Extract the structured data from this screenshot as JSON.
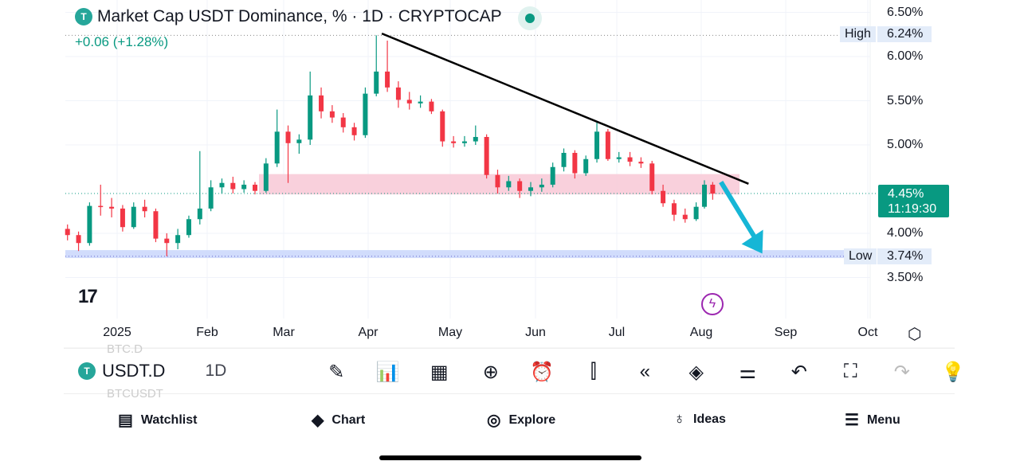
{
  "header": {
    "title": "Market Cap USDT Dominance, % · 1D · CRYPTOCAP",
    "logo": "T",
    "change": "+0.06 (+1.28%)",
    "live_icon": "green-dot"
  },
  "price_axis": {
    "ticks": [
      "6.50%",
      "6.00%",
      "5.50%",
      "5.00%",
      "4.00%",
      "3.50%"
    ],
    "high_label": "High",
    "high_value": "6.24%",
    "low_label": "Low",
    "low_value": "3.74%",
    "current_price": "4.45%",
    "countdown": "11:19:30"
  },
  "time_axis": {
    "labels": [
      "2025",
      "Feb",
      "Mar",
      "Apr",
      "May",
      "Jun",
      "Jul",
      "Aug",
      "Sep",
      "Oct"
    ]
  },
  "branding": {
    "logo_text": "TV"
  },
  "colors": {
    "up": "#089981",
    "down": "#f23645",
    "zone_resistance": "#f8c8d6",
    "zone_support": "#c9d6fb",
    "trendline": "#000000",
    "arrow": "#16b6d6"
  },
  "chart_data": {
    "type": "candlestick",
    "title": "Market Cap USDT Dominance, % · 1D · CRYPTOCAP",
    "ylim": [
      3.1,
      6.6
    ],
    "yticks": [
      3.5,
      4.0,
      5.0,
      5.5,
      6.0,
      6.5
    ],
    "xlim": [
      "2024-12-13",
      "2025-10-05"
    ],
    "grid": true,
    "high": 6.24,
    "low": 3.74,
    "last": 4.45,
    "candles": [
      [
        "2024-12-14",
        4.05,
        4.1,
        3.92,
        3.98
      ],
      [
        "2024-12-18",
        3.98,
        4.02,
        3.8,
        3.89
      ],
      [
        "2024-12-22",
        3.89,
        4.35,
        3.86,
        4.31
      ],
      [
        "2024-12-26",
        4.31,
        4.55,
        4.2,
        4.3
      ],
      [
        "2024-12-30",
        4.3,
        4.4,
        4.18,
        4.28
      ],
      [
        "2025-01-03",
        4.28,
        4.32,
        4.02,
        4.07
      ],
      [
        "2025-01-07",
        4.07,
        4.35,
        4.05,
        4.3
      ],
      [
        "2025-01-11",
        4.3,
        4.38,
        4.18,
        4.25
      ],
      [
        "2025-01-15",
        4.25,
        4.28,
        3.9,
        3.94
      ],
      [
        "2025-01-19",
        3.94,
        4.0,
        3.74,
        3.89
      ],
      [
        "2025-01-23",
        3.89,
        4.05,
        3.82,
        3.98
      ],
      [
        "2025-01-27",
        3.98,
        4.2,
        3.95,
        4.16
      ],
      [
        "2025-01-31",
        4.16,
        4.93,
        4.1,
        4.28
      ],
      [
        "2025-02-04",
        4.28,
        4.6,
        4.25,
        4.52
      ],
      [
        "2025-02-08",
        4.52,
        4.62,
        4.45,
        4.57
      ],
      [
        "2025-02-12",
        4.57,
        4.64,
        4.45,
        4.5
      ],
      [
        "2025-02-16",
        4.5,
        4.6,
        4.46,
        4.55
      ],
      [
        "2025-02-20",
        4.55,
        4.58,
        4.44,
        4.48
      ],
      [
        "2025-02-24",
        4.48,
        4.85,
        4.46,
        4.79
      ],
      [
        "2025-02-28",
        4.79,
        5.4,
        4.75,
        5.15
      ],
      [
        "2025-03-04",
        5.15,
        5.22,
        4.57,
        5.02
      ],
      [
        "2025-03-08",
        5.02,
        5.12,
        4.9,
        5.06
      ],
      [
        "2025-03-12",
        5.06,
        5.83,
        5.0,
        5.56
      ],
      [
        "2025-03-16",
        5.56,
        5.65,
        5.3,
        5.38
      ],
      [
        "2025-03-20",
        5.38,
        5.45,
        5.25,
        5.31
      ],
      [
        "2025-03-24",
        5.31,
        5.36,
        5.14,
        5.2
      ],
      [
        "2025-03-28",
        5.2,
        5.25,
        5.05,
        5.11
      ],
      [
        "2025-04-01",
        5.11,
        5.65,
        5.08,
        5.58
      ],
      [
        "2025-04-05",
        5.58,
        6.24,
        5.55,
        5.83
      ],
      [
        "2025-04-09",
        5.83,
        6.18,
        5.6,
        5.65
      ],
      [
        "2025-04-13",
        5.65,
        5.72,
        5.42,
        5.51
      ],
      [
        "2025-04-17",
        5.51,
        5.6,
        5.4,
        5.47
      ],
      [
        "2025-04-21",
        5.47,
        5.56,
        5.42,
        5.49
      ],
      [
        "2025-04-25",
        5.49,
        5.52,
        5.35,
        5.38
      ],
      [
        "2025-04-29",
        5.38,
        5.4,
        4.98,
        5.04
      ],
      [
        "2025-05-03",
        5.04,
        5.1,
        4.97,
        5.02
      ],
      [
        "2025-05-07",
        5.02,
        5.1,
        4.98,
        5.04
      ],
      [
        "2025-05-11",
        5.04,
        5.22,
        5.0,
        5.09
      ],
      [
        "2025-05-15",
        5.09,
        5.12,
        4.62,
        4.66
      ],
      [
        "2025-05-19",
        4.66,
        4.72,
        4.45,
        4.52
      ],
      [
        "2025-05-23",
        4.52,
        4.65,
        4.48,
        4.59
      ],
      [
        "2025-05-27",
        4.59,
        4.62,
        4.4,
        4.48
      ],
      [
        "2025-05-31",
        4.48,
        4.58,
        4.42,
        4.52
      ],
      [
        "2025-06-04",
        4.52,
        4.62,
        4.47,
        4.55
      ],
      [
        "2025-06-08",
        4.55,
        4.8,
        4.52,
        4.75
      ],
      [
        "2025-06-12",
        4.75,
        4.96,
        4.7,
        4.91
      ],
      [
        "2025-06-16",
        4.91,
        4.94,
        4.62,
        4.68
      ],
      [
        "2025-06-20",
        4.68,
        4.88,
        4.65,
        4.84
      ],
      [
        "2025-06-24",
        4.84,
        5.26,
        4.8,
        5.15
      ],
      [
        "2025-06-28",
        5.15,
        5.18,
        4.82,
        4.84
      ],
      [
        "2025-07-02",
        4.84,
        4.92,
        4.8,
        4.86
      ],
      [
        "2025-07-06",
        4.86,
        4.92,
        4.76,
        4.81
      ],
      [
        "2025-07-10",
        4.81,
        4.86,
        4.74,
        4.79
      ],
      [
        "2025-07-14",
        4.79,
        4.82,
        4.44,
        4.48
      ],
      [
        "2025-07-18",
        4.48,
        4.55,
        4.3,
        4.34
      ],
      [
        "2025-07-22",
        4.34,
        4.38,
        4.14,
        4.21
      ],
      [
        "2025-07-26",
        4.21,
        4.28,
        4.12,
        4.16
      ],
      [
        "2025-07-30",
        4.16,
        4.35,
        4.14,
        4.3
      ],
      [
        "2025-08-02",
        4.3,
        4.6,
        4.28,
        4.55
      ],
      [
        "2025-08-05",
        4.55,
        4.58,
        4.38,
        4.45
      ]
    ],
    "annotations": {
      "resistance_zone": [
        4.44,
        4.67
      ],
      "support_zone": [
        3.72,
        3.81
      ],
      "trendline": [
        [
          "2025-04-07",
          6.26
        ],
        [
          "2025-08-18",
          4.56
        ]
      ],
      "arrow": [
        [
          "2025-08-08",
          4.58
        ],
        [
          "2025-08-23",
          3.77
        ]
      ]
    }
  },
  "toolbar": {
    "symbol": "USDT.D",
    "timeframe": "1D",
    "ghost_above": "BTC.D",
    "ghost_below": "BTCUSDT",
    "icons": [
      "✎",
      "📊",
      "▦",
      "⊕",
      "⏰",
      "⫿",
      "«",
      "◈",
      "⚌",
      "↶",
      "⛶",
      "↷",
      "💡"
    ]
  },
  "nav": [
    {
      "label": "Watchlist",
      "icon": "▤"
    },
    {
      "label": "Chart",
      "icon": "◆"
    },
    {
      "label": "Explore",
      "icon": "◎"
    },
    {
      "label": "Ideas",
      "icon": "♁"
    },
    {
      "label": "Menu",
      "icon": "☰"
    }
  ]
}
